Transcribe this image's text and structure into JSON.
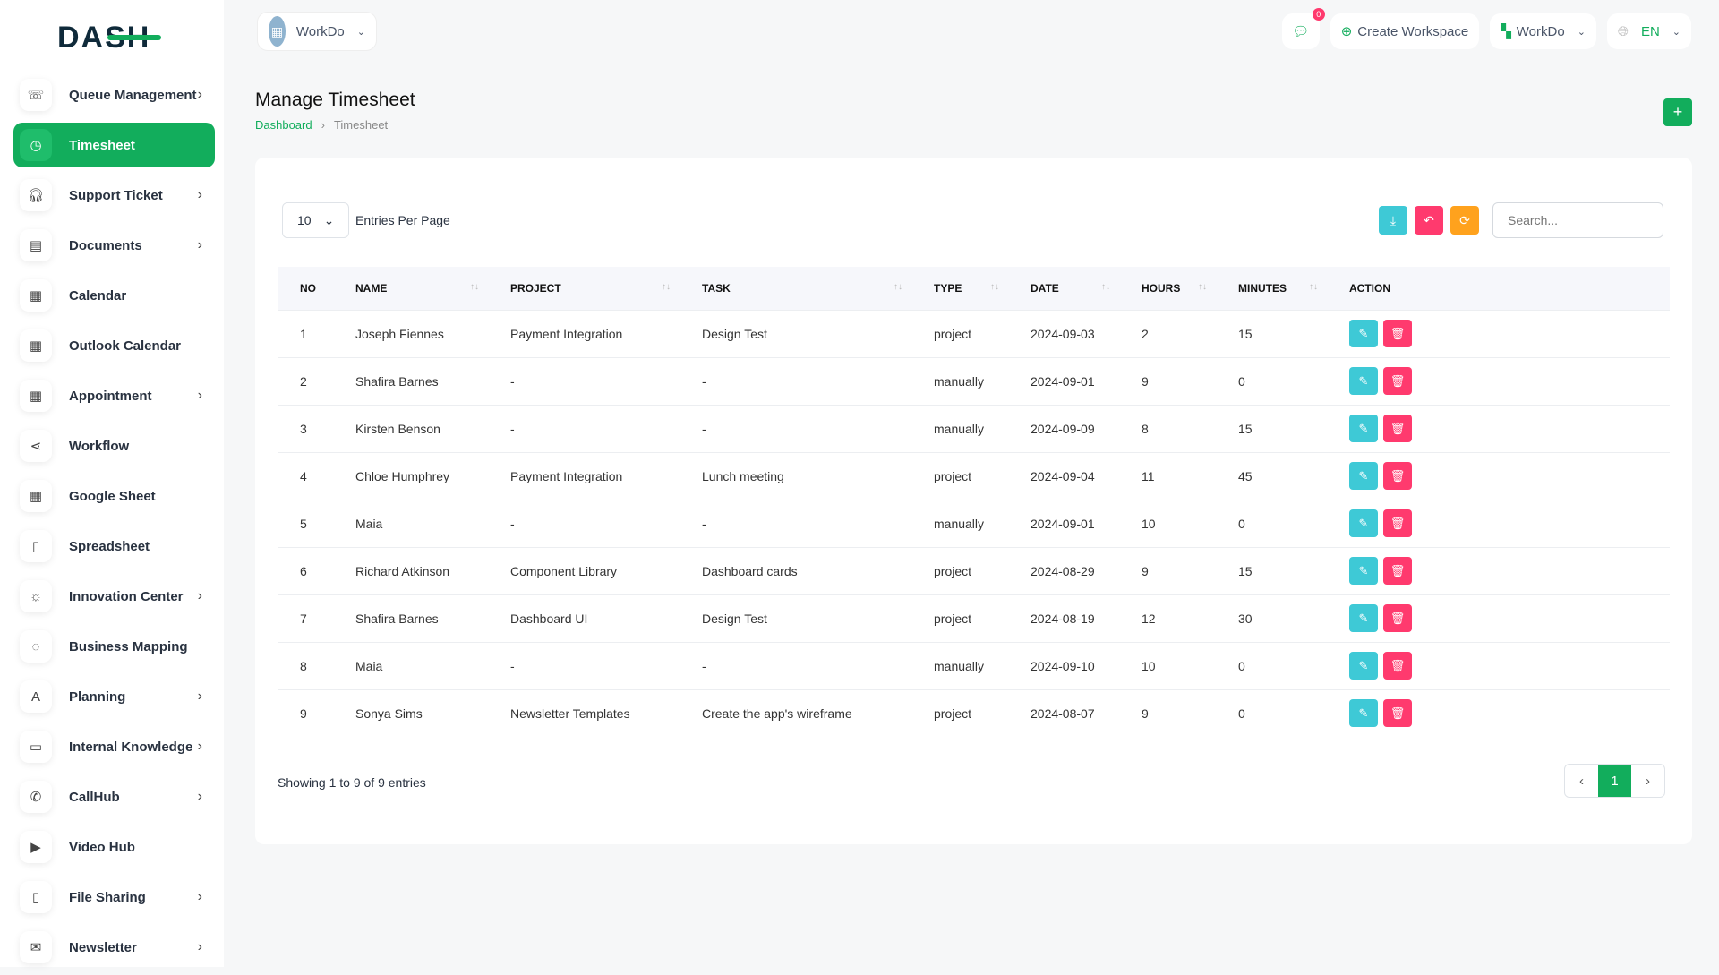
{
  "brand": "DASH",
  "workspace_switch": "WorkDo",
  "header": {
    "notifications": "0",
    "create_workspace": "Create Workspace",
    "workspace": "WorkDo",
    "language": "EN"
  },
  "sidebar": {
    "items": [
      {
        "label": "Queue Management",
        "icon": "phone-queue-icon",
        "chev": true
      },
      {
        "label": "Timesheet",
        "icon": "clock-icon",
        "active": true
      },
      {
        "label": "Support Ticket",
        "icon": "headset-icon",
        "chev": true
      },
      {
        "label": "Documents",
        "icon": "document-icon",
        "chev": true
      },
      {
        "label": "Calendar",
        "icon": "calendar-icon"
      },
      {
        "label": "Outlook Calendar",
        "icon": "calendar-icon"
      },
      {
        "label": "Appointment",
        "icon": "calendar-clock-icon",
        "chev": true
      },
      {
        "label": "Workflow",
        "icon": "workflow-icon"
      },
      {
        "label": "Google Sheet",
        "icon": "sheet-icon"
      },
      {
        "label": "Spreadsheet",
        "icon": "file-icon"
      },
      {
        "label": "Innovation Center",
        "icon": "bulb-icon",
        "chev": true
      },
      {
        "label": "Business Mapping",
        "icon": "circle-dashed-icon"
      },
      {
        "label": "Planning",
        "icon": "planning-icon",
        "chev": true
      },
      {
        "label": "Internal Knowledge",
        "icon": "book-icon",
        "chev": true
      },
      {
        "label": "CallHub",
        "icon": "phone-icon",
        "chev": true
      },
      {
        "label": "Video Hub",
        "icon": "video-icon"
      },
      {
        "label": "File Sharing",
        "icon": "file-icon",
        "chev": true
      },
      {
        "label": "Newsletter",
        "icon": "mail-icon",
        "chev": true
      }
    ]
  },
  "page": {
    "title": "Manage Timesheet",
    "breadcrumb": [
      "Dashboard",
      "Timesheet"
    ]
  },
  "table": {
    "per_page": "10",
    "per_page_label": "Entries Per Page",
    "search_placeholder": "Search...",
    "columns": [
      "NO",
      "NAME",
      "PROJECT",
      "TASK",
      "TYPE",
      "DATE",
      "HOURS",
      "MINUTES",
      "ACTION"
    ],
    "rows": [
      [
        "1",
        "Joseph Fiennes",
        "Payment Integration",
        "Design Test",
        "project",
        "2024-09-03",
        "2",
        "15"
      ],
      [
        "2",
        "Shafira Barnes",
        "-",
        "-",
        "manually",
        "2024-09-01",
        "9",
        "0"
      ],
      [
        "3",
        "Kirsten Benson",
        "-",
        "-",
        "manually",
        "2024-09-09",
        "8",
        "15"
      ],
      [
        "4",
        "Chloe Humphrey",
        "Payment Integration",
        "Lunch meeting",
        "project",
        "2024-09-04",
        "11",
        "45"
      ],
      [
        "5",
        "Maia",
        "-",
        "-",
        "manually",
        "2024-09-01",
        "10",
        "0"
      ],
      [
        "6",
        "Richard Atkinson",
        "Component Library",
        "Dashboard cards",
        "project",
        "2024-08-29",
        "9",
        "15"
      ],
      [
        "7",
        "Shafira Barnes",
        "Dashboard UI",
        "Design Test",
        "project",
        "2024-08-19",
        "12",
        "30"
      ],
      [
        "8",
        "Maia",
        "-",
        "-",
        "manually",
        "2024-09-10",
        "10",
        "0"
      ],
      [
        "9",
        "Sonya Sims",
        "Newsletter Templates",
        "Create the app's wireframe",
        "project",
        "2024-08-07",
        "9",
        "0"
      ]
    ],
    "info": "Showing 1 to 9 of 9 entries",
    "current_page": "1"
  },
  "colors": {
    "primary": "#12ad5c",
    "info": "#3ec9d6",
    "danger": "#ff3a6e",
    "warning": "#ffa21d"
  }
}
